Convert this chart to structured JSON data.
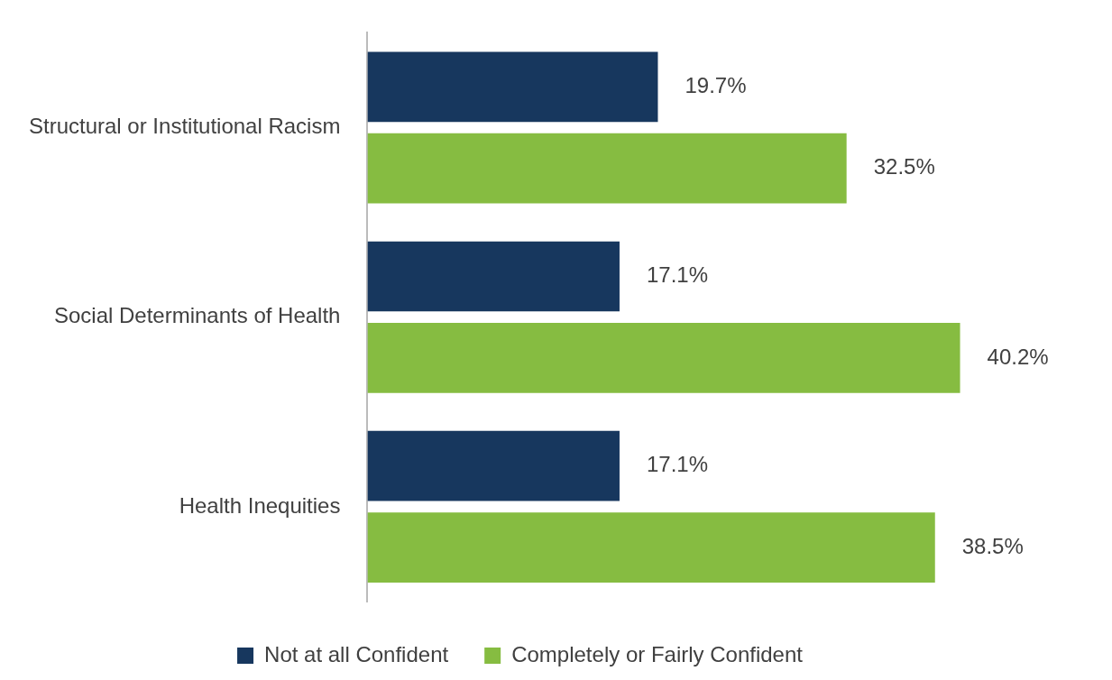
{
  "chart_data": {
    "type": "bar",
    "orientation": "horizontal",
    "categories": [
      "Structural or Institutional Racism",
      "Social Determinants of Health",
      "Health Inequities"
    ],
    "series": [
      {
        "name": "Not at all Confident",
        "color": "#17375e",
        "values": [
          19.7,
          17.1,
          17.1
        ],
        "value_labels": [
          "19.7%",
          "17.1%",
          "17.1%"
        ]
      },
      {
        "name": "Completely or Fairly Confident",
        "color": "#86bc41",
        "values": [
          32.5,
          40.2,
          38.5
        ],
        "value_labels": [
          "32.5%",
          "40.2%",
          "38.5%"
        ]
      }
    ],
    "legend": "bottom",
    "grid": false
  }
}
